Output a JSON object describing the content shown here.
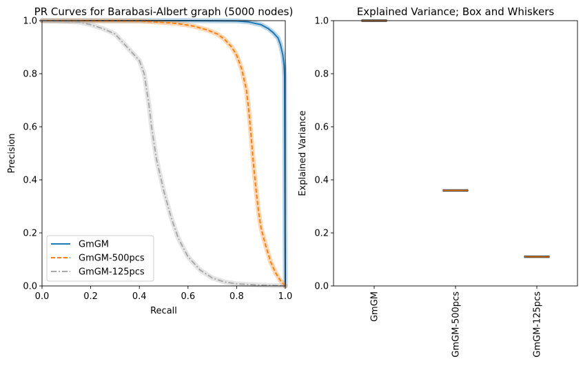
{
  "chart_data": [
    {
      "type": "line",
      "title": "PR Curves for Barabasi-Albert graph (5000 nodes)",
      "xlabel": "Recall",
      "ylabel": "Precision",
      "xlim": [
        0,
        1
      ],
      "ylim": [
        0,
        1
      ],
      "xticks": [
        "0.0",
        "0.2",
        "0.4",
        "0.6",
        "0.8",
        "1.0"
      ],
      "yticks": [
        "0.0",
        "0.2",
        "0.4",
        "0.6",
        "0.8",
        "1.0"
      ],
      "grid": false,
      "legend_position": "lower-left",
      "series": [
        {
          "name": "GmGM",
          "color": "#1f77b4",
          "style": "solid",
          "x": [
            0.0,
            0.6,
            0.8,
            0.85,
            0.9,
            0.93,
            0.95,
            0.97,
            0.98,
            0.99,
            0.995,
            0.997,
            0.998,
            0.999,
            1.0
          ],
          "y": [
            1.0,
            1.0,
            0.999,
            0.995,
            0.985,
            0.97,
            0.955,
            0.935,
            0.91,
            0.87,
            0.83,
            0.79,
            0.5,
            0.2,
            0.0
          ]
        },
        {
          "name": "GmGM-500pcs",
          "color": "#ff7f0e",
          "style": "dashed",
          "x": [
            0.0,
            0.4,
            0.55,
            0.62,
            0.68,
            0.72,
            0.75,
            0.78,
            0.8,
            0.82,
            0.84,
            0.85,
            0.86,
            0.87,
            0.88,
            0.89,
            0.9,
            0.92,
            0.94,
            0.96,
            0.98,
            1.0
          ],
          "y": [
            1.0,
            0.999,
            0.99,
            0.98,
            0.965,
            0.95,
            0.93,
            0.9,
            0.87,
            0.82,
            0.74,
            0.66,
            0.56,
            0.45,
            0.36,
            0.28,
            0.22,
            0.15,
            0.09,
            0.05,
            0.02,
            0.0
          ]
        },
        {
          "name": "GmGM-125pcs",
          "color": "#a9a9a9",
          "style": "dashdot",
          "x": [
            0.0,
            0.15,
            0.2,
            0.25,
            0.3,
            0.35,
            0.38,
            0.4,
            0.42,
            0.44,
            0.45,
            0.47,
            0.5,
            0.53,
            0.56,
            0.6,
            0.65,
            0.7,
            0.75,
            0.8,
            0.9,
            1.0
          ],
          "y": [
            1.0,
            0.995,
            0.985,
            0.97,
            0.95,
            0.9,
            0.87,
            0.85,
            0.8,
            0.68,
            0.6,
            0.48,
            0.36,
            0.26,
            0.18,
            0.11,
            0.06,
            0.03,
            0.015,
            0.008,
            0.003,
            0.0
          ]
        }
      ]
    },
    {
      "type": "box",
      "title": "Explained Variance; Box and Whiskers",
      "xlabel": "",
      "ylabel": "Explained Variance",
      "ylim": [
        0,
        1
      ],
      "yticks": [
        "0.0",
        "0.2",
        "0.4",
        "0.6",
        "0.8",
        "1.0"
      ],
      "categories": [
        "GmGM",
        "GmGM-500pcs",
        "GmGM-125pcs"
      ],
      "values": [
        1.0,
        0.36,
        0.11
      ],
      "median_color": "#ff7f0e",
      "grid": false
    }
  ]
}
